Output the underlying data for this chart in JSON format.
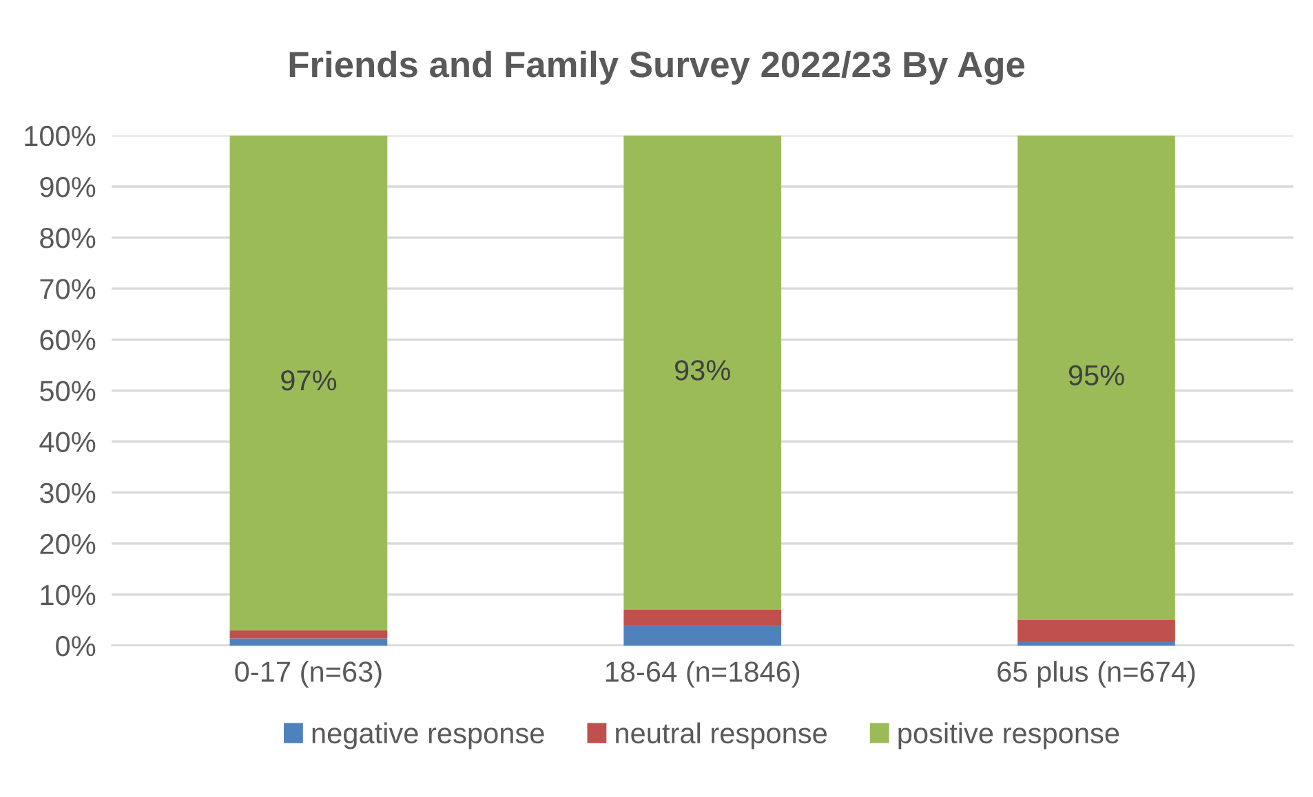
{
  "chart_data": {
    "type": "bar",
    "title": "Friends and Family Survey 2022/23 By Age",
    "stacked": true,
    "categories": [
      "0-17 (n=63)",
      "18-64 (n=1846)",
      "65 plus (n=674)"
    ],
    "series": [
      {
        "name": "negative response",
        "color": "#4f81bd",
        "values": [
          1.4,
          3.8,
          0.8
        ]
      },
      {
        "name": "neutral response",
        "color": "#c0504d",
        "values": [
          1.6,
          3.2,
          4.2
        ]
      },
      {
        "name": "positive response",
        "color": "#9bbb59",
        "values": [
          97,
          93,
          95
        ],
        "value_labels": [
          "97%",
          "93%",
          "95%"
        ]
      }
    ],
    "ylim": [
      0,
      100
    ],
    "yticks": [
      {
        "value": 0,
        "label": "0%"
      },
      {
        "value": 10,
        "label": "10%"
      },
      {
        "value": 20,
        "label": "20%"
      },
      {
        "value": 30,
        "label": "30%"
      },
      {
        "value": 40,
        "label": "40%"
      },
      {
        "value": 50,
        "label": "50%"
      },
      {
        "value": 60,
        "label": "60%"
      },
      {
        "value": 70,
        "label": "70%"
      },
      {
        "value": 80,
        "label": "80%"
      },
      {
        "value": 90,
        "label": "90%"
      },
      {
        "value": 100,
        "label": "100%"
      }
    ],
    "grid": "y",
    "legend": "bottom"
  }
}
